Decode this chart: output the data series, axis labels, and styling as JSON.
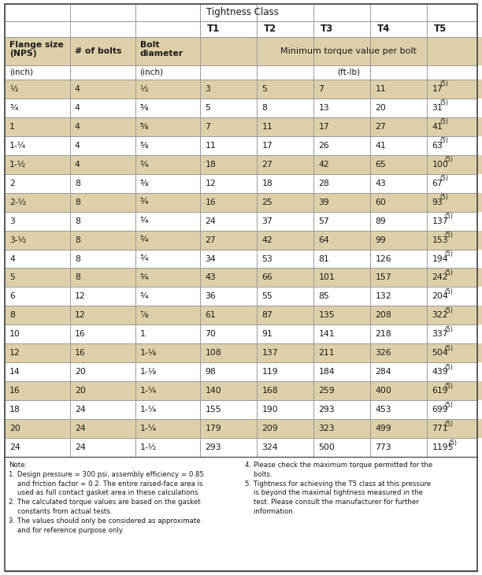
{
  "rows": [
    [
      "½",
      "4",
      "½",
      "3",
      "5",
      "7",
      "11",
      "17",
      "(5)"
    ],
    [
      "¾",
      "4",
      "⅝",
      "5",
      "8",
      "13",
      "20",
      "31",
      "(5)"
    ],
    [
      "1",
      "4",
      "⅝",
      "7",
      "11",
      "17",
      "27",
      "41",
      "(5)"
    ],
    [
      "1-¼",
      "4",
      "⅝",
      "11",
      "17",
      "26",
      "41",
      "63",
      "(5)"
    ],
    [
      "1-½",
      "4",
      "¾",
      "18",
      "27",
      "42",
      "65",
      "100",
      "(5)"
    ],
    [
      "2",
      "8",
      "⅝",
      "12",
      "18",
      "28",
      "43",
      "67",
      "(5)"
    ],
    [
      "2-½",
      "8",
      "¾",
      "16",
      "25",
      "39",
      "60",
      "93",
      "(5)"
    ],
    [
      "3",
      "8",
      "¾",
      "24",
      "37",
      "57",
      "89",
      "137",
      "(5)"
    ],
    [
      "3-½",
      "8",
      "¾",
      "27",
      "42",
      "64",
      "99",
      "153",
      "(5)"
    ],
    [
      "4",
      "8",
      "¾",
      "34",
      "53",
      "81",
      "126",
      "194",
      "(5)"
    ],
    [
      "5",
      "8",
      "¾",
      "43",
      "66",
      "101",
      "157",
      "242",
      "(5)"
    ],
    [
      "6",
      "12",
      "¾",
      "36",
      "55",
      "85",
      "132",
      "204",
      "(5)"
    ],
    [
      "8",
      "12",
      "⅞",
      "61",
      "87",
      "135",
      "208",
      "322",
      "(5)"
    ],
    [
      "10",
      "16",
      "1",
      "70",
      "91",
      "141",
      "218",
      "337",
      "(5)"
    ],
    [
      "12",
      "16",
      "1-⅛",
      "108",
      "137",
      "211",
      "326",
      "504",
      "(5)"
    ],
    [
      "14",
      "20",
      "1-⅛",
      "98",
      "119",
      "184",
      "284",
      "439",
      "(5)"
    ],
    [
      "16",
      "20",
      "1-¼",
      "140",
      "168",
      "259",
      "400",
      "619",
      "(5)"
    ],
    [
      "18",
      "24",
      "1-¼",
      "155",
      "190",
      "293",
      "453",
      "699",
      "(5)"
    ],
    [
      "20",
      "24",
      "1-¼",
      "179",
      "209",
      "323",
      "499",
      "771",
      "(5)"
    ],
    [
      "24",
      "24",
      "1-½",
      "293",
      "324",
      "500",
      "773",
      "1195",
      "(5)"
    ]
  ],
  "bg_light": "#ddd0a8",
  "bg_white": "#ffffff",
  "bg_header": "#ddd0a8",
  "border_color": "#aaaaaa",
  "text_color": "#1a1a1a",
  "note1": "Note:\n1. Design pressure = 300 psi, assembly efficiency = 0.85\n    and friction factor = 0.2. The entire raised-face area is\n    used as full contact gasket area in these calculations.\n2. The calculated torque values are based on the gasket\n    constants from actual tests.\n3. The values should only be considered as approximate\n    and for reference purpose only.",
  "note2": "4. Please check the maximum torque permitted for the\n    bolts.\n5. Tightness for achieving the T5 class at this pressure\n    is beyond the maximal tightness measured in the\n    test. Please consult the manufacturer for further\n    information."
}
